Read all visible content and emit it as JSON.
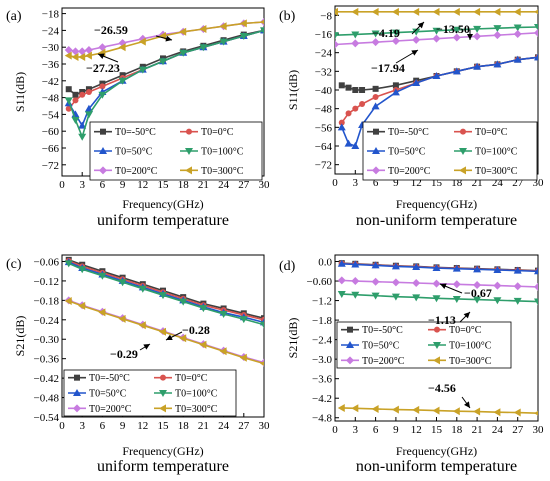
{
  "chart_data": [
    {
      "panel": "(a)",
      "type": "line",
      "caption": "uniform temperature",
      "xlabel": "Frequency(GHz)",
      "ylabel": "S11(dB)",
      "xlim": [
        0,
        30
      ],
      "ylim": [
        -76,
        -16
      ],
      "xticks": [
        0,
        3,
        6,
        9,
        12,
        15,
        18,
        21,
        24,
        27,
        30
      ],
      "yticks": [
        -18,
        -24,
        -30,
        -36,
        -42,
        -48,
        -54,
        -60,
        -66,
        -72
      ],
      "legend": {
        "placement": "bottom-right",
        "columns": 2
      },
      "series": [
        {
          "name": "T0=-50°C",
          "color": "#404040",
          "marker": "square",
          "x": [
            1,
            2,
            3,
            4,
            6,
            9,
            12,
            15,
            18,
            21,
            24,
            27,
            30
          ],
          "y": [
            -45,
            -47,
            -46,
            -45,
            -43,
            -40,
            -37,
            -34,
            -31.5,
            -29.5,
            -27.5,
            -25.5,
            -24
          ]
        },
        {
          "name": "T0=0°C",
          "color": "#d9534f",
          "marker": "circle",
          "x": [
            1,
            2,
            3,
            4,
            6,
            9,
            12,
            15,
            18,
            21,
            24,
            27,
            30
          ],
          "y": [
            -52,
            -49,
            -47,
            -46,
            -44,
            -41,
            -38,
            -35,
            -32,
            -30,
            -28,
            -26,
            -24
          ]
        },
        {
          "name": "T0=50°C",
          "color": "#2255cc",
          "marker": "triangle-up",
          "x": [
            1,
            2,
            3,
            4,
            6,
            9,
            12,
            15,
            18,
            21,
            24,
            27,
            30
          ],
          "y": [
            -50,
            -54,
            -58,
            -52,
            -46,
            -42,
            -38,
            -35,
            -32,
            -30,
            -28,
            -26,
            -24
          ]
        },
        {
          "name": "T0=100°C",
          "color": "#2e9e6b",
          "marker": "triangle-down",
          "x": [
            1,
            2,
            3,
            4,
            6,
            9,
            12,
            15,
            18,
            21,
            24,
            27,
            30
          ],
          "y": [
            -49,
            -56,
            -62,
            -54,
            -47,
            -42,
            -38,
            -35,
            -32,
            -30,
            -28,
            -26,
            -24
          ]
        },
        {
          "name": "T0=200°C",
          "color": "#c77be0",
          "marker": "diamond",
          "x": [
            1,
            2,
            3,
            4,
            6,
            9,
            12,
            15,
            18,
            21,
            24,
            27,
            30
          ],
          "y": [
            -31,
            -31.5,
            -31.5,
            -31,
            -30,
            -28.5,
            -27,
            -25.5,
            -24.5,
            -23.5,
            -22.5,
            -21.5,
            -21
          ]
        },
        {
          "name": "T0=300°C",
          "color": "#c9a227",
          "marker": "triangle-left",
          "x": [
            1,
            2,
            3,
            4,
            6,
            9,
            12,
            15,
            18,
            21,
            24,
            27,
            30
          ],
          "y": [
            -33,
            -33.5,
            -33.5,
            -33,
            -32,
            -30,
            -28,
            -26,
            -24.5,
            -23.5,
            -22.5,
            -21.5,
            -21
          ]
        }
      ],
      "annotations": [
        {
          "text": "−26.59",
          "x": 10,
          "y": -20
        },
        {
          "text": "−27.23",
          "x": 7,
          "y": -38
        }
      ]
    },
    {
      "panel": "(b)",
      "type": "line",
      "caption": "non-uniform temperature",
      "xlabel": "Frequency(GHz)",
      "ylabel": "S11(dB)",
      "xlim": [
        0,
        30
      ],
      "ylim": [
        -76,
        -4
      ],
      "xticks": [
        0,
        3,
        6,
        9,
        12,
        15,
        18,
        21,
        24,
        27,
        30
      ],
      "yticks": [
        -8,
        -16,
        -24,
        -32,
        -40,
        -48,
        -56,
        -64,
        -72
      ],
      "legend": {
        "placement": "bottom-right",
        "columns": 2
      },
      "series": [
        {
          "name": "T0=-50°C",
          "color": "#404040",
          "marker": "square",
          "x": [
            1,
            2,
            3,
            4,
            6,
            9,
            12,
            15,
            18,
            21,
            24,
            27,
            30
          ],
          "y": [
            -38,
            -39,
            -40,
            -40,
            -39.5,
            -38,
            -36,
            -34,
            -32,
            -30,
            -29,
            -27,
            -26
          ]
        },
        {
          "name": "T0=0°C",
          "color": "#d9534f",
          "marker": "circle",
          "x": [
            1,
            2,
            3,
            4,
            6,
            9,
            12,
            15,
            18,
            21,
            24,
            27,
            30
          ],
          "y": [
            -54,
            -50,
            -48,
            -46,
            -43,
            -40,
            -37,
            -34,
            -32,
            -30,
            -29,
            -27,
            -26
          ]
        },
        {
          "name": "T0=50°C",
          "color": "#2255cc",
          "marker": "triangle-up",
          "x": [
            1,
            2,
            3,
            4,
            6,
            9,
            12,
            15,
            18,
            21,
            24,
            27,
            30
          ],
          "y": [
            -56,
            -63,
            -64,
            -55,
            -47,
            -41,
            -37,
            -34,
            -32,
            -30,
            -29,
            -27,
            -26
          ]
        },
        {
          "name": "T0=100°C",
          "color": "#2e9e6b",
          "marker": "triangle-down",
          "x": [
            0,
            3,
            6,
            9,
            12,
            15,
            18,
            21,
            24,
            27,
            30
          ],
          "y": [
            -16.5,
            -16.2,
            -15.8,
            -15.4,
            -15,
            -14.6,
            -14.2,
            -13.8,
            -13.5,
            -13.2,
            -13
          ]
        },
        {
          "name": "T0=200°C",
          "color": "#c77be0",
          "marker": "diamond",
          "x": [
            0,
            3,
            6,
            9,
            12,
            15,
            18,
            21,
            24,
            27,
            30
          ],
          "y": [
            -20.5,
            -20,
            -19.5,
            -19,
            -18.5,
            -18,
            -17.5,
            -17,
            -16.5,
            -16,
            -15.5
          ]
        },
        {
          "name": "T0=300°C",
          "color": "#c9a227",
          "marker": "triangle-left",
          "x": [
            0,
            3,
            6,
            9,
            12,
            15,
            18,
            21,
            24,
            27,
            30
          ],
          "y": [
            -6.5,
            -6.5,
            -6.5,
            -6.5,
            -6.5,
            -6.5,
            -6.5,
            -6.5,
            -6.5,
            -6.5,
            -6.5
          ]
        }
      ],
      "annotations": [
        {
          "text": "−4.19",
          "x": 6,
          "y": -10
        },
        {
          "text": "−13.50",
          "x": 17,
          "y": -9.5
        },
        {
          "text": "−17.94",
          "x": 5,
          "y": -27
        }
      ]
    },
    {
      "panel": "(c)",
      "type": "line",
      "caption": "uniform temperature",
      "xlabel": "Frequency(GHz)",
      "ylabel": "S21(dB)",
      "xlim": [
        0,
        30
      ],
      "ylim": [
        -0.54,
        -0.04
      ],
      "xticks": [
        0,
        3,
        6,
        9,
        12,
        15,
        18,
        21,
        24,
        27,
        30
      ],
      "yticks": [
        -0.06,
        -0.12,
        -0.18,
        -0.24,
        -0.3,
        -0.36,
        -0.42,
        -0.48,
        -0.54
      ],
      "legend": {
        "placement": "bottom-left",
        "columns": 2
      },
      "series": [
        {
          "name": "T0=-50°C",
          "color": "#404040",
          "marker": "square",
          "x": [
            1,
            3,
            6,
            9,
            12,
            15,
            18,
            21,
            24,
            27,
            30
          ],
          "y": [
            -0.055,
            -0.07,
            -0.09,
            -0.11,
            -0.13,
            -0.15,
            -0.17,
            -0.19,
            -0.205,
            -0.22,
            -0.235
          ]
        },
        {
          "name": "T0=0°C",
          "color": "#d9534f",
          "marker": "circle",
          "x": [
            1,
            3,
            6,
            9,
            12,
            15,
            18,
            21,
            24,
            27,
            30
          ],
          "y": [
            -0.058,
            -0.075,
            -0.095,
            -0.115,
            -0.135,
            -0.155,
            -0.175,
            -0.195,
            -0.21,
            -0.225,
            -0.24
          ]
        },
        {
          "name": "T0=50°C",
          "color": "#2255cc",
          "marker": "triangle-up",
          "x": [
            1,
            3,
            6,
            9,
            12,
            15,
            18,
            21,
            24,
            27,
            30
          ],
          "y": [
            -0.062,
            -0.08,
            -0.1,
            -0.12,
            -0.14,
            -0.16,
            -0.18,
            -0.2,
            -0.218,
            -0.232,
            -0.248
          ]
        },
        {
          "name": "T0=100°C",
          "color": "#2e9e6b",
          "marker": "triangle-down",
          "x": [
            1,
            3,
            6,
            9,
            12,
            15,
            18,
            21,
            24,
            27,
            30
          ],
          "y": [
            -0.066,
            -0.084,
            -0.104,
            -0.124,
            -0.144,
            -0.164,
            -0.184,
            -0.204,
            -0.222,
            -0.238,
            -0.255
          ]
        },
        {
          "name": "T0=200°C",
          "color": "#c77be0",
          "marker": "diamond",
          "x": [
            1,
            3,
            6,
            9,
            12,
            15,
            18,
            21,
            24,
            27,
            30
          ],
          "y": [
            -0.18,
            -0.195,
            -0.215,
            -0.235,
            -0.255,
            -0.275,
            -0.295,
            -0.315,
            -0.335,
            -0.355,
            -0.372
          ]
        },
        {
          "name": "T0=300°C",
          "color": "#c9a227",
          "marker": "triangle-left",
          "x": [
            1,
            3,
            6,
            9,
            12,
            15,
            18,
            21,
            24,
            27,
            30
          ],
          "y": [
            -0.182,
            -0.197,
            -0.217,
            -0.237,
            -0.257,
            -0.277,
            -0.297,
            -0.317,
            -0.337,
            -0.357,
            -0.375
          ]
        }
      ],
      "annotations": [
        {
          "text": "−0.28",
          "x": 21,
          "y": -0.275
        },
        {
          "text": "−0.29",
          "x": 9,
          "y": -0.355
        }
      ]
    },
    {
      "panel": "(d)",
      "type": "line",
      "caption": "non-uniform temperature",
      "xlabel": "Frequency(GHz)",
      "ylabel": "S21(dB)",
      "xlim": [
        0,
        30
      ],
      "ylim": [
        -4.9,
        0.2
      ],
      "xticks": [
        0,
        3,
        6,
        9,
        12,
        15,
        18,
        21,
        24,
        27,
        30
      ],
      "yticks": [
        0.0,
        -0.6,
        -1.2,
        -1.8,
        -2.4,
        -3.0,
        -3.6,
        -4.2,
        -4.8
      ],
      "legend": {
        "placement": "middle-left",
        "columns": 2
      },
      "series": [
        {
          "name": "T0=-50°C",
          "color": "#404040",
          "marker": "square",
          "x": [
            1,
            3,
            6,
            9,
            12,
            15,
            18,
            21,
            24,
            27,
            30
          ],
          "y": [
            -0.05,
            -0.07,
            -0.1,
            -0.13,
            -0.15,
            -0.18,
            -0.2,
            -0.22,
            -0.24,
            -0.26,
            -0.28
          ]
        },
        {
          "name": "T0=0°C",
          "color": "#d9534f",
          "marker": "circle",
          "x": [
            1,
            3,
            6,
            9,
            12,
            15,
            18,
            21,
            24,
            27,
            30
          ],
          "y": [
            -0.06,
            -0.08,
            -0.11,
            -0.14,
            -0.16,
            -0.19,
            -0.21,
            -0.23,
            -0.25,
            -0.27,
            -0.29
          ]
        },
        {
          "name": "T0=50°C",
          "color": "#2255cc",
          "marker": "triangle-up",
          "x": [
            1,
            3,
            6,
            9,
            12,
            15,
            18,
            21,
            24,
            27,
            30
          ],
          "y": [
            -0.07,
            -0.09,
            -0.12,
            -0.15,
            -0.17,
            -0.2,
            -0.22,
            -0.24,
            -0.26,
            -0.28,
            -0.3
          ]
        },
        {
          "name": "T0=100°C",
          "color": "#2e9e6b",
          "marker": "triangle-down",
          "x": [
            1,
            3,
            6,
            9,
            12,
            15,
            18,
            21,
            24,
            27,
            30
          ],
          "y": [
            -1.0,
            -1.02,
            -1.05,
            -1.08,
            -1.1,
            -1.13,
            -1.15,
            -1.17,
            -1.19,
            -1.21,
            -1.23
          ]
        },
        {
          "name": "T0=200°C",
          "color": "#c77be0",
          "marker": "diamond",
          "x": [
            1,
            3,
            6,
            9,
            12,
            15,
            18,
            21,
            24,
            27,
            30
          ],
          "y": [
            -0.58,
            -0.6,
            -0.62,
            -0.64,
            -0.66,
            -0.68,
            -0.7,
            -0.72,
            -0.74,
            -0.76,
            -0.78
          ]
        },
        {
          "name": "T0=300°C",
          "color": "#c9a227",
          "marker": "triangle-left",
          "x": [
            1,
            3,
            6,
            9,
            12,
            15,
            18,
            21,
            24,
            27,
            30
          ],
          "y": [
            -4.5,
            -4.51,
            -4.53,
            -4.55,
            -4.56,
            -4.58,
            -4.6,
            -4.61,
            -4.63,
            -4.64,
            -4.66
          ]
        }
      ],
      "annotations": [
        {
          "text": "−0.67",
          "x": 17,
          "y": -0.85
        },
        {
          "text": "−1.13",
          "x": 19,
          "y": -1.55
        },
        {
          "text": "−4.56",
          "x": 19,
          "y": -4.05
        }
      ]
    }
  ]
}
